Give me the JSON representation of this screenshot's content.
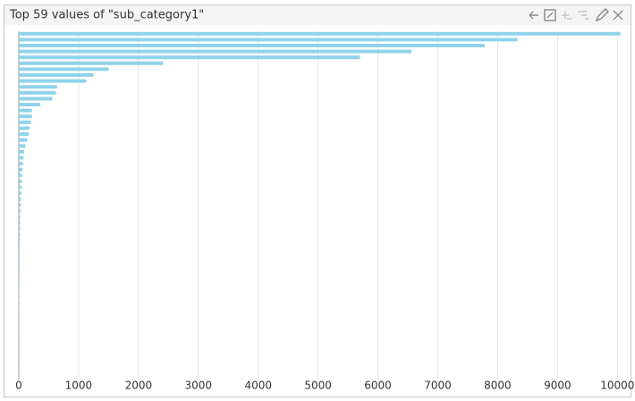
{
  "chart_data": {
    "type": "bar",
    "orientation": "horizontal",
    "title": "Top 59 values of \"sub_category1\"",
    "categories": [
      null,
      null,
      null,
      null,
      null,
      null,
      null,
      null,
      null,
      null,
      null,
      null,
      null,
      null,
      null,
      null,
      null,
      null,
      null,
      null,
      null,
      null,
      null,
      null,
      null,
      null,
      null,
      null,
      null,
      null,
      null,
      null,
      null,
      null,
      null,
      null,
      null,
      null,
      null,
      null,
      null,
      null,
      null,
      null,
      null,
      null,
      null,
      null,
      null,
      null,
      null,
      null,
      null,
      null,
      null,
      null,
      null,
      null,
      null
    ],
    "values": [
      10050,
      8330,
      7780,
      6560,
      5700,
      2410,
      1500,
      1250,
      1130,
      640,
      620,
      560,
      360,
      220,
      220,
      200,
      180,
      170,
      140,
      110,
      90,
      80,
      70,
      60,
      55,
      50,
      45,
      40,
      35,
      30,
      28,
      26,
      24,
      22,
      20,
      18,
      16,
      15,
      14,
      13,
      12,
      11,
      10,
      9,
      8,
      7,
      6,
      5,
      5,
      4,
      4,
      3,
      3,
      2,
      2,
      2,
      1,
      1,
      1
    ],
    "color": "#8fd3ea",
    "xlim": [
      0,
      10190
    ],
    "xticks": [
      0,
      1000,
      2000,
      3000,
      4000,
      5000,
      6000,
      7000,
      8000,
      9000,
      10000
    ],
    "grid": true
  }
}
